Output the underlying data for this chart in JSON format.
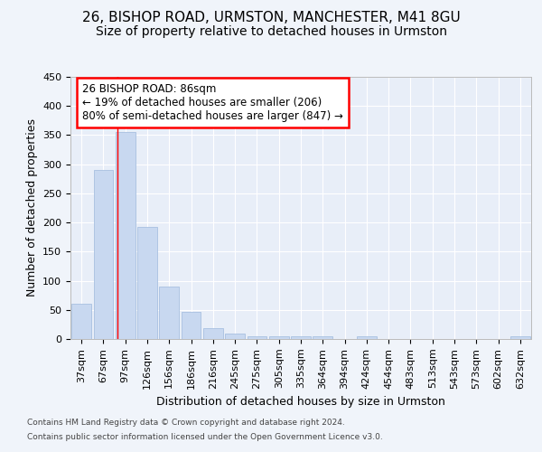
{
  "title1": "26, BISHOP ROAD, URMSTON, MANCHESTER, M41 8GU",
  "title2": "Size of property relative to detached houses in Urmston",
  "xlabel": "Distribution of detached houses by size in Urmston",
  "ylabel": "Number of detached properties",
  "bins": [
    "37sqm",
    "67sqm",
    "97sqm",
    "126sqm",
    "156sqm",
    "186sqm",
    "216sqm",
    "245sqm",
    "275sqm",
    "305sqm",
    "335sqm",
    "364sqm",
    "394sqm",
    "424sqm",
    "454sqm",
    "483sqm",
    "513sqm",
    "543sqm",
    "573sqm",
    "602sqm",
    "632sqm"
  ],
  "values": [
    60,
    290,
    355,
    192,
    90,
    46,
    18,
    9,
    5,
    5,
    4,
    4,
    0,
    4,
    0,
    0,
    0,
    0,
    0,
    0,
    4
  ],
  "bar_color": "#c8d8f0",
  "bar_edgecolor": "#a8c0e0",
  "redline_x": 1.63,
  "annotation_text": "26 BISHOP ROAD: 86sqm\n← 19% of detached houses are smaller (206)\n80% of semi-detached houses are larger (847) →",
  "footer1": "Contains HM Land Registry data © Crown copyright and database right 2024.",
  "footer2": "Contains public sector information licensed under the Open Government Licence v3.0.",
  "background_color": "#f0f4fa",
  "plot_background": "#e8eef8",
  "ylim": [
    0,
    450
  ],
  "title1_fontsize": 11,
  "title2_fontsize": 10,
  "xlabel_fontsize": 9,
  "ylabel_fontsize": 9,
  "tick_fontsize": 8,
  "ann_fontsize": 8.5
}
